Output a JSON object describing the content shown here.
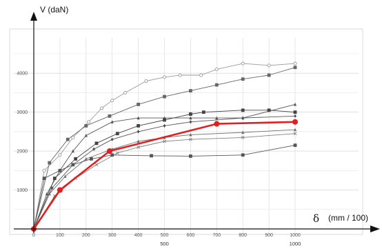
{
  "chart_data": {
    "type": "line",
    "ylabel": "V (daN)",
    "xlabel_symbol": "δ",
    "xlabel_unit": "(mm / 100)",
    "xlim": [
      0,
      1000
    ],
    "ylim": [
      0,
      4500
    ],
    "y_ticks": [
      "1000",
      "2000",
      "3000",
      "4000"
    ],
    "x_minor_ticks": [
      "0",
      "100",
      "200",
      "300",
      "400",
      "500",
      "600",
      "700",
      "800",
      "900",
      "1000"
    ],
    "x_major_ticks": [
      "500",
      "1000"
    ],
    "grid": true,
    "highlight_color": "#e02020",
    "series": [
      {
        "color": "#9a9a9a",
        "marker": "circle",
        "x": [
          0,
          40,
          100,
          150,
          210,
          260,
          300,
          350,
          430,
          500,
          560,
          640,
          700,
          800,
          900,
          1000
        ],
        "y": [
          0,
          1500,
          1900,
          2350,
          2750,
          3100,
          3300,
          3500,
          3800,
          3900,
          3950,
          3950,
          4100,
          4250,
          4200,
          4250
        ]
      },
      {
        "color": "#666666",
        "marker": "square",
        "x": [
          0,
          60,
          130,
          200,
          290,
          400,
          500,
          600,
          700,
          800,
          900,
          1000
        ],
        "y": [
          0,
          1700,
          2300,
          2650,
          2900,
          3200,
          3400,
          3550,
          3700,
          3850,
          3950,
          4150
        ]
      },
      {
        "color": "#555555",
        "marker": "triangle",
        "x": [
          0,
          50,
          100,
          150,
          200,
          300,
          400,
          500,
          600,
          700,
          800,
          1000
        ],
        "y": [
          0,
          900,
          1500,
          2000,
          2400,
          2750,
          2850,
          2850,
          2850,
          2850,
          2850,
          3200
        ]
      },
      {
        "color": "#444444",
        "marker": "square",
        "x": [
          0,
          80,
          160,
          240,
          320,
          400,
          500,
          600,
          650,
          800,
          900,
          1000
        ],
        "y": [
          0,
          1300,
          1800,
          2200,
          2450,
          2650,
          2800,
          2950,
          3000,
          3050,
          3050,
          3000
        ]
      },
      {
        "color": "#555555",
        "marker": "diamond",
        "x": [
          0,
          70,
          150,
          230,
          300,
          400,
          500,
          600,
          800,
          1000
        ],
        "y": [
          0,
          1050,
          1650,
          2050,
          2300,
          2500,
          2650,
          2750,
          2850,
          2900
        ]
      },
      {
        "color": "#707070",
        "marker": "triangle",
        "x": [
          0,
          60,
          120,
          200,
          300,
          400,
          500,
          600,
          800,
          1000
        ],
        "y": [
          0,
          900,
          1350,
          1800,
          2050,
          2250,
          2350,
          2420,
          2480,
          2550
        ]
      },
      {
        "color": "#808080",
        "marker": "cross",
        "x": [
          0,
          80,
          160,
          240,
          320,
          400,
          500,
          600,
          800,
          1000
        ],
        "y": [
          0,
          850,
          1300,
          1650,
          1950,
          2100,
          2250,
          2300,
          2350,
          2450
        ]
      },
      {
        "color": "#555555",
        "marker": "square",
        "x": [
          0,
          40,
          100,
          150,
          220,
          300,
          450,
          600,
          800,
          1000
        ],
        "y": [
          0,
          1300,
          1500,
          1650,
          1800,
          1900,
          1880,
          1870,
          1900,
          2150
        ]
      },
      {
        "color": "#e02020",
        "marker": "circle",
        "highlight": true,
        "x": [
          0,
          100,
          290,
          700,
          1000
        ],
        "y": [
          0,
          1000,
          2000,
          2700,
          2750
        ]
      }
    ]
  }
}
